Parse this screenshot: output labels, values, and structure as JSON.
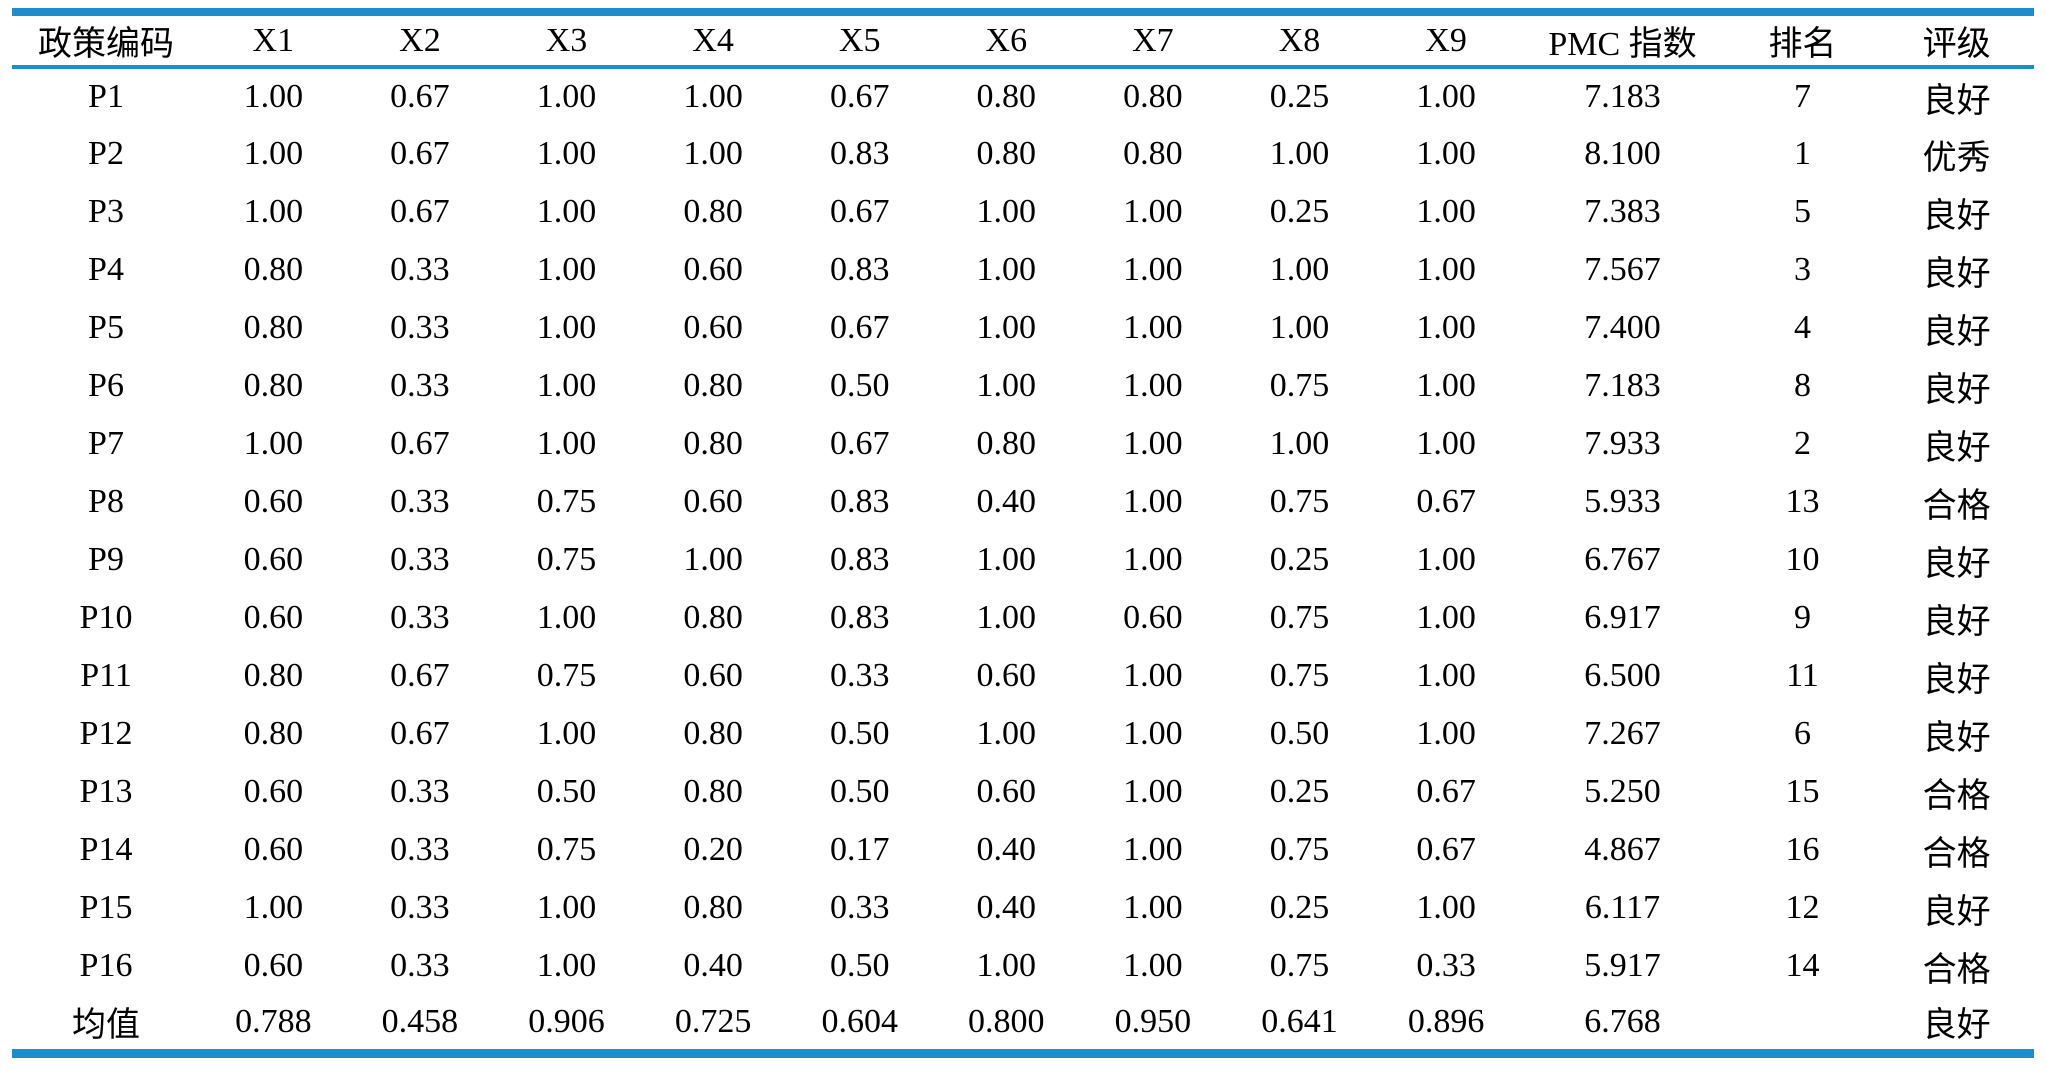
{
  "colors": {
    "accent_blue": "#1f8dcb",
    "text": "#000000",
    "background": "#ffffff"
  },
  "table": {
    "columns": [
      "政策编码",
      "X1",
      "X2",
      "X3",
      "X4",
      "X5",
      "X6",
      "X7",
      "X8",
      "X9",
      "PMC 指数",
      "排名",
      "评级"
    ],
    "rows": [
      [
        "P1",
        "1.00",
        "0.67",
        "1.00",
        "1.00",
        "0.67",
        "0.80",
        "0.80",
        "0.25",
        "1.00",
        "7.183",
        "7",
        "良好"
      ],
      [
        "P2",
        "1.00",
        "0.67",
        "1.00",
        "1.00",
        "0.83",
        "0.80",
        "0.80",
        "1.00",
        "1.00",
        "8.100",
        "1",
        "优秀"
      ],
      [
        "P3",
        "1.00",
        "0.67",
        "1.00",
        "0.80",
        "0.67",
        "1.00",
        "1.00",
        "0.25",
        "1.00",
        "7.383",
        "5",
        "良好"
      ],
      [
        "P4",
        "0.80",
        "0.33",
        "1.00",
        "0.60",
        "0.83",
        "1.00",
        "1.00",
        "1.00",
        "1.00",
        "7.567",
        "3",
        "良好"
      ],
      [
        "P5",
        "0.80",
        "0.33",
        "1.00",
        "0.60",
        "0.67",
        "1.00",
        "1.00",
        "1.00",
        "1.00",
        "7.400",
        "4",
        "良好"
      ],
      [
        "P6",
        "0.80",
        "0.33",
        "1.00",
        "0.80",
        "0.50",
        "1.00",
        "1.00",
        "0.75",
        "1.00",
        "7.183",
        "8",
        "良好"
      ],
      [
        "P7",
        "1.00",
        "0.67",
        "1.00",
        "0.80",
        "0.67",
        "0.80",
        "1.00",
        "1.00",
        "1.00",
        "7.933",
        "2",
        "良好"
      ],
      [
        "P8",
        "0.60",
        "0.33",
        "0.75",
        "0.60",
        "0.83",
        "0.40",
        "1.00",
        "0.75",
        "0.67",
        "5.933",
        "13",
        "合格"
      ],
      [
        "P9",
        "0.60",
        "0.33",
        "0.75",
        "1.00",
        "0.83",
        "1.00",
        "1.00",
        "0.25",
        "1.00",
        "6.767",
        "10",
        "良好"
      ],
      [
        "P10",
        "0.60",
        "0.33",
        "1.00",
        "0.80",
        "0.83",
        "1.00",
        "0.60",
        "0.75",
        "1.00",
        "6.917",
        "9",
        "良好"
      ],
      [
        "P11",
        "0.80",
        "0.67",
        "0.75",
        "0.60",
        "0.33",
        "0.60",
        "1.00",
        "0.75",
        "1.00",
        "6.500",
        "11",
        "良好"
      ],
      [
        "P12",
        "0.80",
        "0.67",
        "1.00",
        "0.80",
        "0.50",
        "1.00",
        "1.00",
        "0.50",
        "1.00",
        "7.267",
        "6",
        "良好"
      ],
      [
        "P13",
        "0.60",
        "0.33",
        "0.50",
        "0.80",
        "0.50",
        "0.60",
        "1.00",
        "0.25",
        "0.67",
        "5.250",
        "15",
        "合格"
      ],
      [
        "P14",
        "0.60",
        "0.33",
        "0.75",
        "0.20",
        "0.17",
        "0.40",
        "1.00",
        "0.75",
        "0.67",
        "4.867",
        "16",
        "合格"
      ],
      [
        "P15",
        "1.00",
        "0.33",
        "1.00",
        "0.80",
        "0.33",
        "0.40",
        "1.00",
        "0.25",
        "1.00",
        "6.117",
        "12",
        "良好"
      ],
      [
        "P16",
        "0.60",
        "0.33",
        "1.00",
        "0.40",
        "0.50",
        "1.00",
        "1.00",
        "0.75",
        "0.33",
        "5.917",
        "14",
        "合格"
      ],
      [
        "均值",
        "0.788",
        "0.458",
        "0.906",
        "0.725",
        "0.604",
        "0.800",
        "0.950",
        "0.641",
        "0.896",
        "6.768",
        "",
        "良好"
      ]
    ]
  }
}
